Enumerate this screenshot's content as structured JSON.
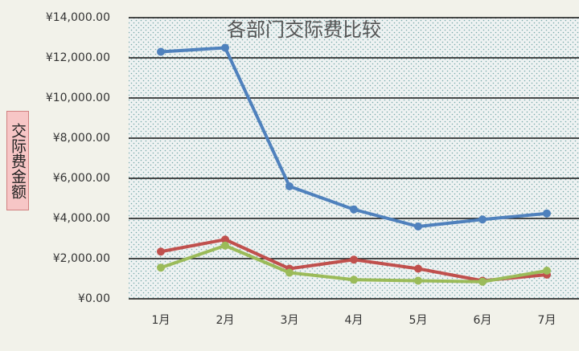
{
  "chart_data": {
    "type": "line",
    "title": "各部门交际费比较",
    "y_label": "交际费金额",
    "categories": [
      "1月",
      "2月",
      "3月",
      "4月",
      "5月",
      "6月",
      "7月"
    ],
    "series": [
      {
        "color": "#4f81bd",
        "values": [
          12300,
          12500,
          5600,
          4450,
          3600,
          3950,
          4250
        ]
      },
      {
        "color": "#c0504d",
        "values": [
          2350,
          2950,
          1500,
          1950,
          1500,
          900,
          1200
        ]
      },
      {
        "color": "#9bbb59",
        "values": [
          1550,
          2650,
          1300,
          950,
          900,
          850,
          1400
        ]
      }
    ],
    "ylim": [
      0,
      14000
    ],
    "yticks": [
      {
        "value": 0,
        "label": "¥0.00"
      },
      {
        "value": 2000,
        "label": "¥2,000.00"
      },
      {
        "value": 4000,
        "label": "¥4,000.00"
      },
      {
        "value": 6000,
        "label": "¥6,000.00"
      },
      {
        "value": 8000,
        "label": "¥8,000.00"
      },
      {
        "value": 10000,
        "label": "¥10,000.00"
      },
      {
        "value": 12000,
        "label": "¥12,000.00"
      },
      {
        "value": 14000,
        "label": "¥14,000.00"
      }
    ],
    "grid": true
  }
}
